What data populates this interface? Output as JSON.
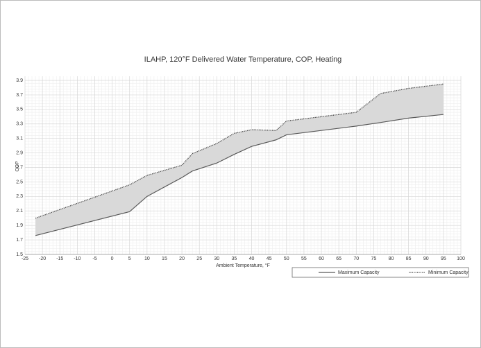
{
  "chart_data": {
    "type": "line",
    "title": "ILAHP, 120°F Delivered Water Temperature, COP, Heating",
    "x_label": "Ambient Temperature, °F",
    "y_label": "COP",
    "x": [
      -22,
      5,
      10,
      20,
      23,
      30,
      35,
      40,
      47,
      50,
      60,
      70,
      77,
      85,
      95
    ],
    "series": [
      {
        "name": "Maximum Capacity",
        "color": "#595959",
        "dash": "solid",
        "values": [
          1.76,
          2.09,
          2.3,
          2.56,
          2.65,
          2.76,
          2.88,
          2.99,
          3.08,
          3.15,
          3.21,
          3.27,
          3.32,
          3.38,
          3.43
        ]
      },
      {
        "name": "Minimum Capacity",
        "color": "#404040",
        "dash": "dotted",
        "values": [
          2.0,
          2.46,
          2.59,
          2.73,
          2.89,
          3.03,
          3.17,
          3.22,
          3.21,
          3.34,
          3.4,
          3.46,
          3.72,
          3.79,
          3.85
        ]
      }
    ],
    "band_fill": "#d9d9d9",
    "xlim": [
      -25,
      100
    ],
    "xticks": [
      -25,
      -20,
      -15,
      -10,
      -5,
      0,
      5,
      10,
      15,
      20,
      25,
      30,
      35,
      40,
      45,
      50,
      55,
      60,
      65,
      70,
      75,
      80,
      85,
      90,
      95,
      100
    ],
    "ylim": [
      1.5,
      3.9
    ],
    "yticks": [
      1.5,
      1.7,
      1.9,
      2.1,
      2.3,
      2.5,
      2.7,
      2.9,
      3.1,
      3.3,
      3.5,
      3.7,
      3.9
    ],
    "grid": true,
    "legend": "bottom-right"
  }
}
